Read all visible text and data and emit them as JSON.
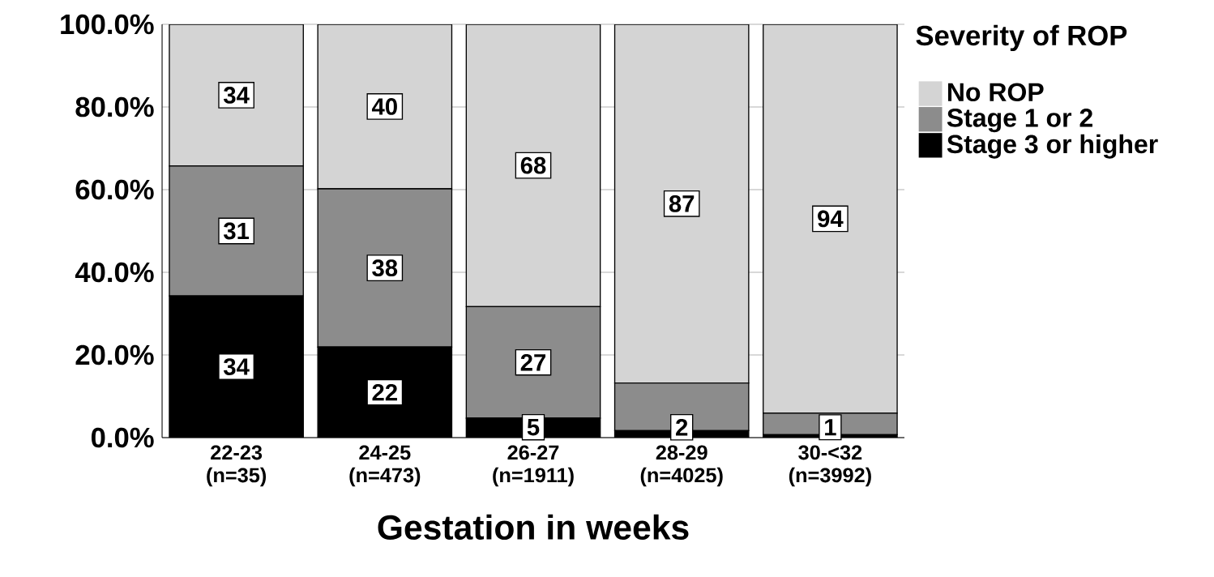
{
  "chart_data": {
    "type": "bar",
    "stacked": true,
    "xlabel": "Gestation in weeks",
    "legend_title": "Severity of ROP",
    "legend": "right",
    "grid": "y",
    "categories": [
      "22-23 (n=35)",
      "24-25 (n=473)",
      "26-27 (n=1911)",
      "28-29 (n=4025)",
      "30-<32 (n=3992)"
    ],
    "ylim": [
      0,
      100
    ],
    "yticks": [
      {
        "value": 0,
        "label": "0.0%"
      },
      {
        "value": 20,
        "label": "20.0%"
      },
      {
        "value": 40,
        "label": "40.0%"
      },
      {
        "value": 60,
        "label": "60.0%"
      },
      {
        "value": 80,
        "label": "80.0%"
      },
      {
        "value": 100,
        "label": "100.0%"
      }
    ],
    "series": [
      {
        "name": "Stage 3 or higher",
        "color": "#000000",
        "values": [
          34.3,
          21.9,
          4.7,
          1.7,
          0.7
        ],
        "value_labels": [
          "34",
          "22",
          "5",
          "2",
          "1"
        ]
      },
      {
        "name": "Stage 1 or 2",
        "color": "#8c8c8c",
        "values": [
          31.4,
          38.3,
          27.0,
          11.5,
          5.2
        ],
        "value_labels": [
          "31",
          "38",
          "27",
          null,
          null
        ]
      },
      {
        "name": "No ROP",
        "color": "#d4d4d4",
        "values": [
          34.3,
          39.8,
          68.3,
          86.8,
          94.1
        ],
        "value_labels": [
          "34",
          "40",
          "68",
          "87",
          "94"
        ]
      }
    ]
  }
}
